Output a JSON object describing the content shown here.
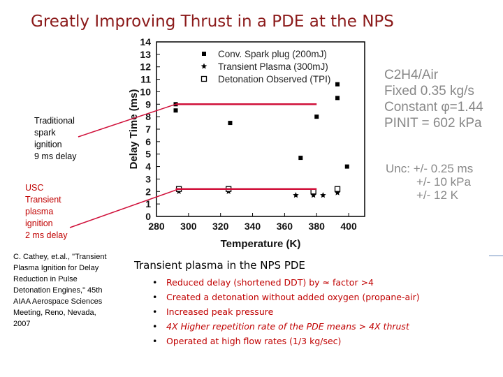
{
  "slide": {
    "title": "Greatly Improving Thrust in a PDE at the NPS"
  },
  "left_labels": {
    "traditional": [
      "Traditional",
      "spark",
      "ignition"
    ],
    "traditional_delay": "9 ms delay",
    "usc": [
      "USC",
      "Transient",
      "plasma",
      "ignition"
    ],
    "usc_delay": "2 ms delay"
  },
  "citation": [
    "C. Cathey, et.al., \"Transient",
    "Plasma Ignition for Delay",
    "Reduction in Pulse",
    "Detonation Engines,\" 45th",
    "AIAA Aerospace Sciences",
    "Meeting, Reno, Nevada,",
    "2007"
  ],
  "conditions": {
    "mixture": "C2H4/Air",
    "flow": "Fixed 0.35 kg/s",
    "phi": "Constant φ=1.44",
    "pinit": "PINIT = 602 kPa"
  },
  "uncertainty": {
    "label": "Unc:",
    "time": "+/- 0.25 ms",
    "pressure": "+/- 10 kPa",
    "temperature": "+/- 12 K"
  },
  "summary": {
    "heading": "Transient plasma in the NPS PDE",
    "bullets": [
      "Reduced delay (shortened DDT) by ≈ factor >4",
      "Created a detonation without added oxygen (propane-air)",
      "Increased peak pressure",
      "4X Higher repetition rate of the PDE means > 4X thrust",
      "Operated at high flow rates (1/3 kg/sec)"
    ]
  },
  "colors": {
    "title": "#8b1a1a",
    "accent_red": "#c00000",
    "annotation_red": "#d0103a",
    "conditions_gray": "#888888"
  },
  "chart_data": {
    "type": "scatter",
    "xlabel": "Temperature (K)",
    "ylabel": "Delay Time (ms)",
    "xlim": [
      280,
      410
    ],
    "ylim": [
      0,
      14
    ],
    "xticks": [
      280,
      300,
      320,
      340,
      360,
      380,
      400
    ],
    "yticks": [
      0,
      1,
      2,
      3,
      4,
      5,
      6,
      7,
      8,
      9,
      10,
      11,
      12,
      13,
      14
    ],
    "legend_position": "top-right",
    "series": [
      {
        "name": "Conv. Spark plug (200mJ)",
        "marker": "square",
        "points": [
          [
            292,
            9.0
          ],
          [
            292,
            8.5
          ],
          [
            326,
            7.5
          ],
          [
            370,
            4.7
          ],
          [
            380,
            8.0
          ],
          [
            393,
            10.6
          ],
          [
            393,
            9.5
          ],
          [
            399,
            4.0
          ]
        ]
      },
      {
        "name": "Transient Plasma (300mJ)",
        "marker": "star",
        "points": [
          [
            294,
            2.0
          ],
          [
            325,
            2.0
          ],
          [
            367,
            1.7
          ],
          [
            378,
            1.7
          ],
          [
            384,
            1.7
          ],
          [
            393,
            1.9
          ]
        ]
      },
      {
        "name": "Detonation Observed (TPI)",
        "marker": "open-square",
        "points": [
          [
            294,
            2.2
          ],
          [
            325,
            2.2
          ],
          [
            378,
            2.0
          ],
          [
            393,
            2.2
          ]
        ]
      }
    ],
    "reference_lines": [
      {
        "y": 9.0,
        "x_start": 292,
        "x_end": 380,
        "label": "9 ms delay"
      },
      {
        "y": 2.2,
        "x_start": 292,
        "x_end": 380,
        "label": "2 ms delay"
      }
    ]
  }
}
